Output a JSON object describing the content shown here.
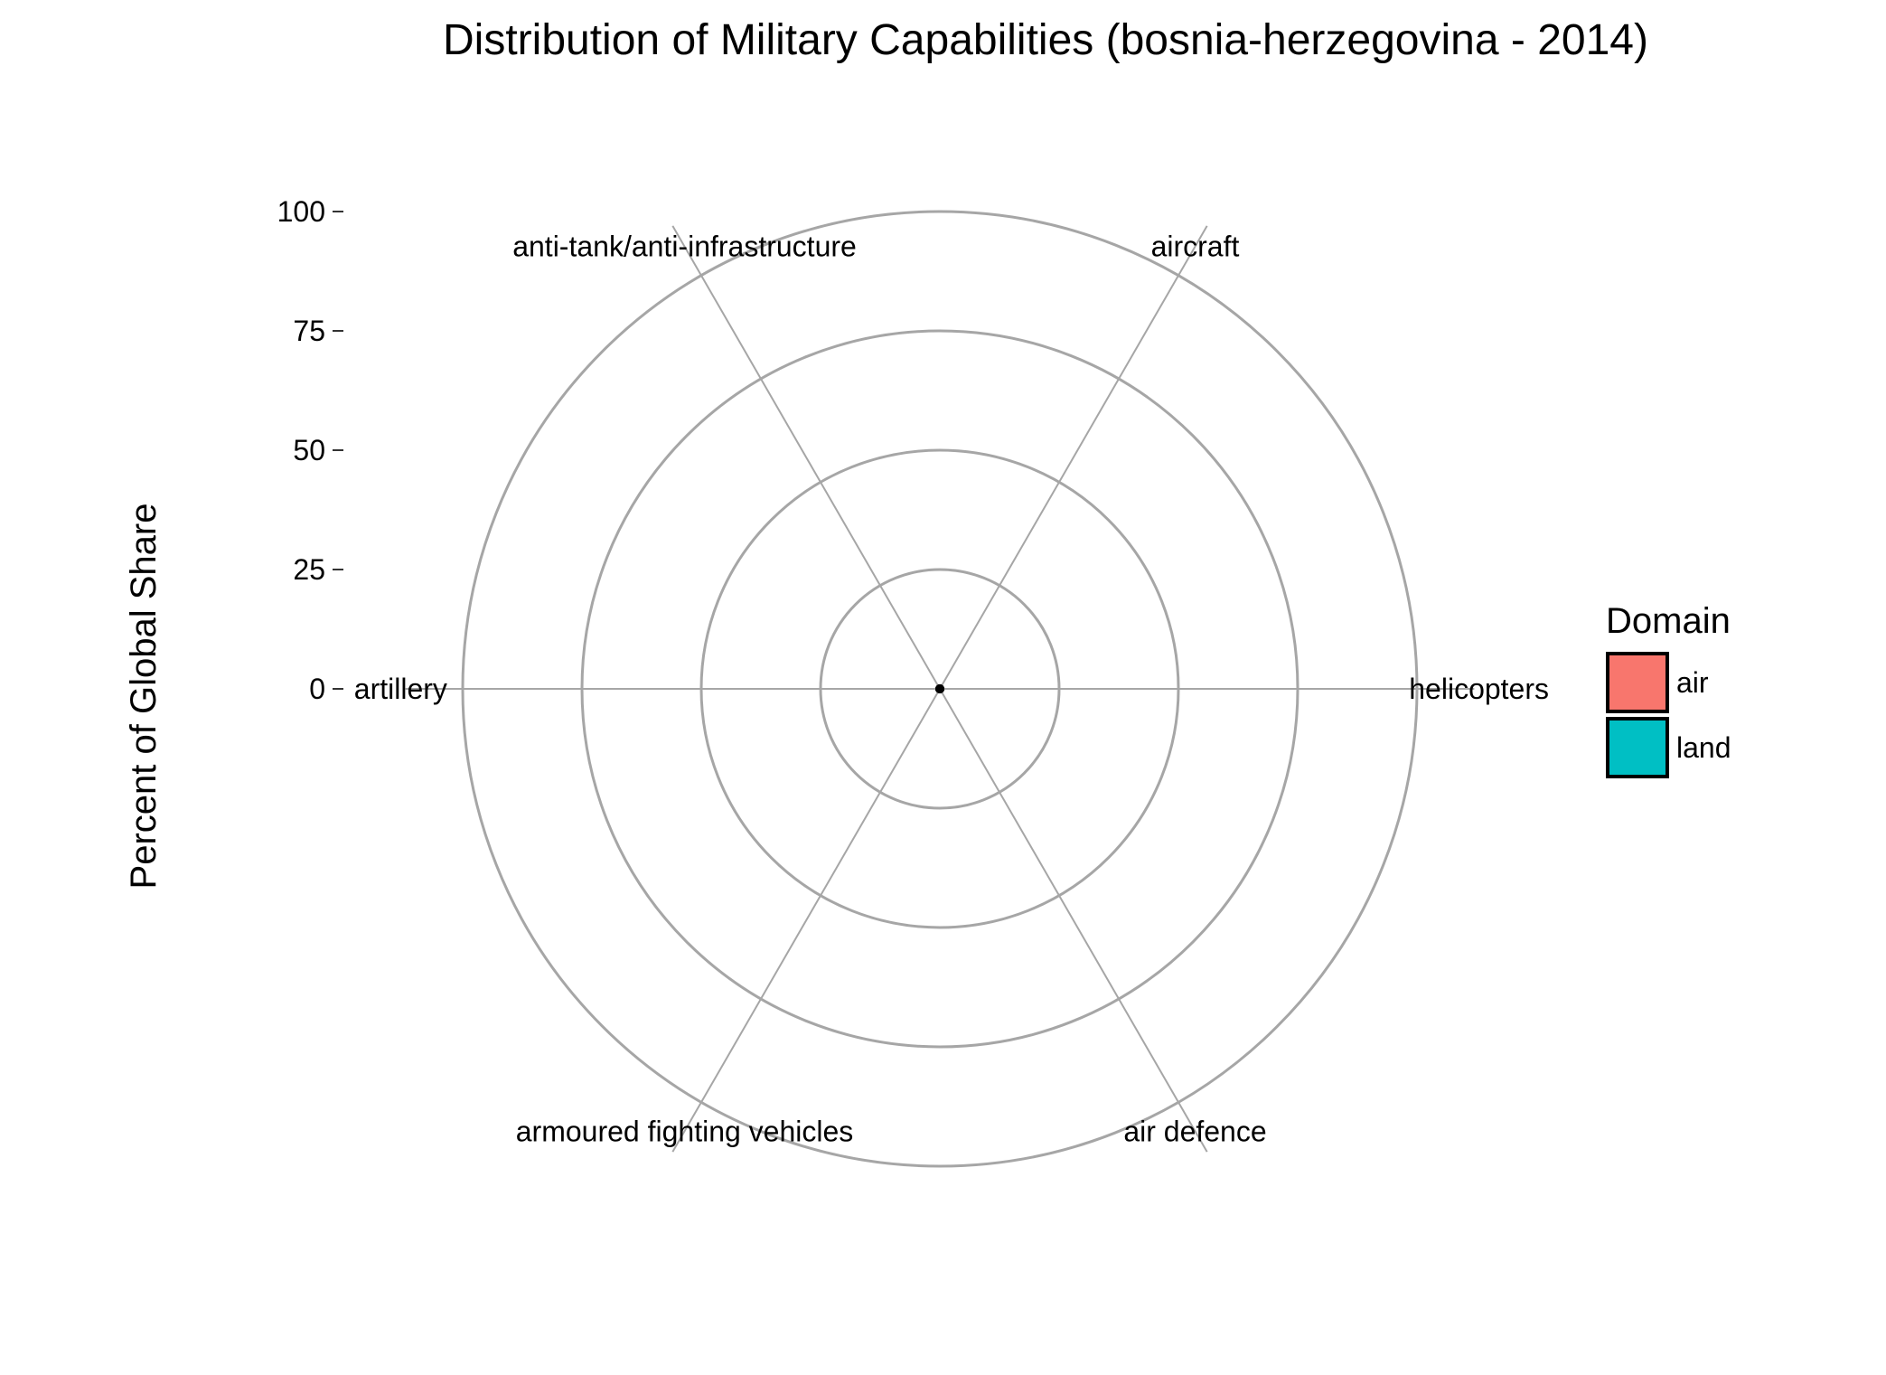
{
  "chart_data": {
    "type": "radar",
    "title": "Distribution of Military Capabilities (bosnia-herzegovina - 2014)",
    "ylabel": "Percent of Global Share",
    "xlabel": "",
    "ylim": [
      0,
      100
    ],
    "yticks": [
      0,
      25,
      50,
      75,
      100
    ],
    "categories": [
      "helicopters",
      "aircraft",
      "anti-tank/anti-infrastructure",
      "artillery",
      "armoured fighting vehicles",
      "air defence"
    ],
    "category_angles_deg": [
      0,
      60,
      120,
      180,
      240,
      300
    ],
    "series": [
      {
        "values": [
          0,
          0,
          0,
          0,
          0,
          0
        ]
      }
    ],
    "legend": {
      "title": "Domain",
      "position": "right",
      "items": [
        {
          "label": "air",
          "color": "#F8766D"
        },
        {
          "label": "land",
          "color": "#00BFC4"
        }
      ]
    },
    "grid": true,
    "colors": {
      "grid": "#a6a6a6",
      "point": "#000000"
    }
  }
}
